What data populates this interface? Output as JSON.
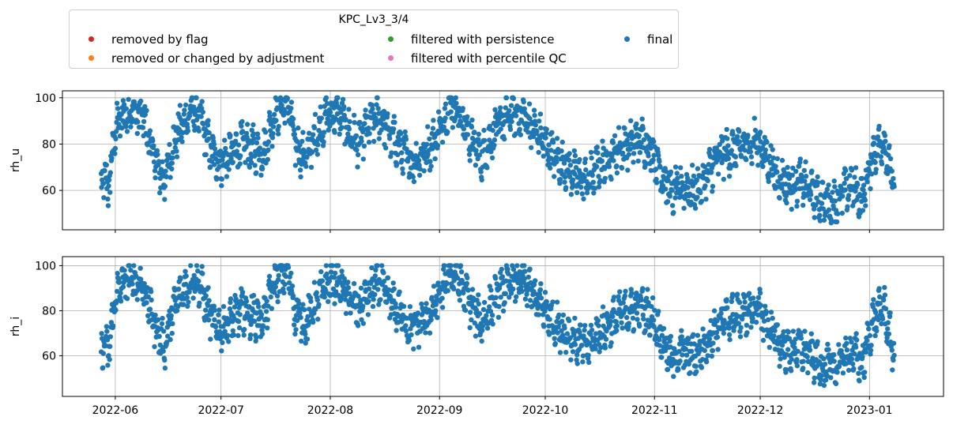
{
  "legend": {
    "title": "KPC_Lv3_3/4",
    "items": [
      {
        "label": "removed by flag",
        "color": "#d62728"
      },
      {
        "label": "removed or changed by adjustment",
        "color": "#ff7f0e"
      },
      {
        "label": "filtered with persistence",
        "color": "#2ca02c"
      },
      {
        "label": "filtered with percentile QC",
        "color": "#e377c2"
      },
      {
        "label": "final",
        "color": "#1f77b4"
      }
    ]
  },
  "chart_data": [
    {
      "type": "scatter",
      "title": "",
      "xlabel": "",
      "ylabel": "rh_u",
      "ylim": [
        43,
        103
      ],
      "yticks": [
        60,
        80,
        100
      ],
      "xlim": [
        "2022-05-17",
        "2023-01-22"
      ],
      "xticks": [
        "2022-06",
        "2022-07",
        "2022-08",
        "2022-09",
        "2022-10",
        "2022-11",
        "2022-12",
        "2023-01"
      ],
      "grid": true,
      "series": [
        {
          "name": "final",
          "color": "#1f77b4",
          "x": [
            "2022-05-28",
            "2022-05-29",
            "2022-05-30",
            "2022-06-01",
            "2022-06-03",
            "2022-06-06",
            "2022-06-09",
            "2022-06-11",
            "2022-06-13",
            "2022-06-15",
            "2022-06-17",
            "2022-06-19",
            "2022-06-21",
            "2022-06-23",
            "2022-06-25",
            "2022-06-27",
            "2022-06-29",
            "2022-07-01",
            "2022-07-04",
            "2022-07-07",
            "2022-07-10",
            "2022-07-13",
            "2022-07-16",
            "2022-07-18",
            "2022-07-20",
            "2022-07-22",
            "2022-07-25",
            "2022-07-28",
            "2022-07-31",
            "2022-08-03",
            "2022-08-06",
            "2022-08-09",
            "2022-08-12",
            "2022-08-15",
            "2022-08-18",
            "2022-08-21",
            "2022-08-24",
            "2022-08-27",
            "2022-08-30",
            "2022-09-01",
            "2022-09-04",
            "2022-09-07",
            "2022-09-10",
            "2022-09-13",
            "2022-09-16",
            "2022-09-19",
            "2022-09-22",
            "2022-09-25",
            "2022-09-28",
            "2022-10-01",
            "2022-10-04",
            "2022-10-07",
            "2022-10-10",
            "2022-10-13",
            "2022-10-16",
            "2022-10-19",
            "2022-10-22",
            "2022-10-25",
            "2022-10-28",
            "2022-10-31",
            "2022-11-03",
            "2022-11-06",
            "2022-11-09",
            "2022-11-12",
            "2022-11-15",
            "2022-11-18",
            "2022-11-21",
            "2022-11-24",
            "2022-11-27",
            "2022-11-30",
            "2022-12-03",
            "2022-12-06",
            "2022-12-09",
            "2022-12-12",
            "2022-12-15",
            "2022-12-18",
            "2022-12-21",
            "2022-12-24",
            "2022-12-27",
            "2022-12-30",
            "2023-01-02",
            "2023-01-05",
            "2023-01-08"
          ],
          "y": [
            62,
            66,
            60,
            86,
            92,
            94,
            91,
            80,
            70,
            64,
            78,
            86,
            90,
            95,
            92,
            82,
            74,
            72,
            76,
            80,
            78,
            76,
            92,
            96,
            98,
            80,
            74,
            84,
            92,
            94,
            86,
            80,
            88,
            92,
            84,
            78,
            72,
            75,
            80,
            86,
            98,
            92,
            82,
            74,
            84,
            90,
            93,
            92,
            86,
            80,
            74,
            70,
            66,
            64,
            70,
            74,
            78,
            80,
            82,
            78,
            68,
            58,
            62,
            60,
            64,
            72,
            76,
            78,
            79,
            82,
            74,
            66,
            62,
            64,
            60,
            56,
            54,
            58,
            62,
            56,
            76,
            82,
            60
          ]
        },
        {
          "name": "removed by flag",
          "color": "#d62728",
          "x": [],
          "y": []
        },
        {
          "name": "removed or changed by adjustment",
          "color": "#ff7f0e",
          "x": [],
          "y": []
        },
        {
          "name": "filtered with persistence",
          "color": "#2ca02c",
          "x": [],
          "y": []
        },
        {
          "name": "filtered with percentile QC",
          "color": "#e377c2",
          "x": [],
          "y": []
        }
      ]
    },
    {
      "type": "scatter",
      "title": "",
      "xlabel": "",
      "ylabel": "rh_i",
      "ylim": [
        42,
        104
      ],
      "yticks": [
        60,
        80,
        100
      ],
      "xlim": [
        "2022-05-17",
        "2023-01-22"
      ],
      "xticks": [
        "2022-06",
        "2022-07",
        "2022-08",
        "2022-09",
        "2022-10",
        "2022-11",
        "2022-12",
        "2023-01"
      ],
      "grid": true,
      "series": [
        {
          "name": "final",
          "color": "#1f77b4",
          "x": [
            "2022-05-28",
            "2022-05-29",
            "2022-05-30",
            "2022-06-01",
            "2022-06-03",
            "2022-06-06",
            "2022-06-09",
            "2022-06-11",
            "2022-06-13",
            "2022-06-15",
            "2022-06-17",
            "2022-06-19",
            "2022-06-21",
            "2022-06-23",
            "2022-06-25",
            "2022-06-27",
            "2022-06-29",
            "2022-07-01",
            "2022-07-04",
            "2022-07-07",
            "2022-07-10",
            "2022-07-13",
            "2022-07-16",
            "2022-07-18",
            "2022-07-20",
            "2022-07-22",
            "2022-07-25",
            "2022-07-28",
            "2022-07-31",
            "2022-08-03",
            "2022-08-06",
            "2022-08-09",
            "2022-08-12",
            "2022-08-15",
            "2022-08-18",
            "2022-08-21",
            "2022-08-24",
            "2022-08-27",
            "2022-08-30",
            "2022-09-01",
            "2022-09-04",
            "2022-09-07",
            "2022-09-10",
            "2022-09-13",
            "2022-09-16",
            "2022-09-19",
            "2022-09-22",
            "2022-09-25",
            "2022-09-28",
            "2022-10-01",
            "2022-10-04",
            "2022-10-07",
            "2022-10-10",
            "2022-10-13",
            "2022-10-16",
            "2022-10-19",
            "2022-10-22",
            "2022-10-25",
            "2022-10-28",
            "2022-10-31",
            "2022-11-03",
            "2022-11-06",
            "2022-11-09",
            "2022-11-12",
            "2022-11-15",
            "2022-11-18",
            "2022-11-21",
            "2022-11-24",
            "2022-11-27",
            "2022-11-30",
            "2022-12-03",
            "2022-12-06",
            "2022-12-09",
            "2022-12-12",
            "2022-12-15",
            "2022-12-18",
            "2022-12-21",
            "2022-12-24",
            "2022-12-27",
            "2022-12-30",
            "2023-01-02",
            "2023-01-05",
            "2023-01-08"
          ],
          "y": [
            62,
            66,
            60,
            86,
            92,
            94,
            91,
            80,
            70,
            64,
            78,
            86,
            90,
            95,
            92,
            82,
            74,
            72,
            76,
            80,
            78,
            76,
            92,
            96,
            98,
            80,
            74,
            84,
            92,
            94,
            86,
            80,
            88,
            92,
            84,
            78,
            72,
            75,
            80,
            86,
            98,
            92,
            82,
            74,
            84,
            90,
            93,
            92,
            86,
            80,
            74,
            70,
            66,
            64,
            70,
            74,
            78,
            80,
            82,
            78,
            68,
            58,
            62,
            60,
            64,
            72,
            76,
            78,
            79,
            82,
            74,
            66,
            62,
            64,
            60,
            56,
            54,
            58,
            62,
            56,
            76,
            82,
            60
          ]
        },
        {
          "name": "removed by flag",
          "color": "#d62728",
          "x": [],
          "y": []
        },
        {
          "name": "removed or changed by adjustment",
          "color": "#ff7f0e",
          "x": [],
          "y": []
        },
        {
          "name": "filtered with persistence",
          "color": "#2ca02c",
          "x": [],
          "y": []
        },
        {
          "name": "filtered with percentile QC",
          "color": "#e377c2",
          "x": [],
          "y": []
        }
      ]
    }
  ]
}
